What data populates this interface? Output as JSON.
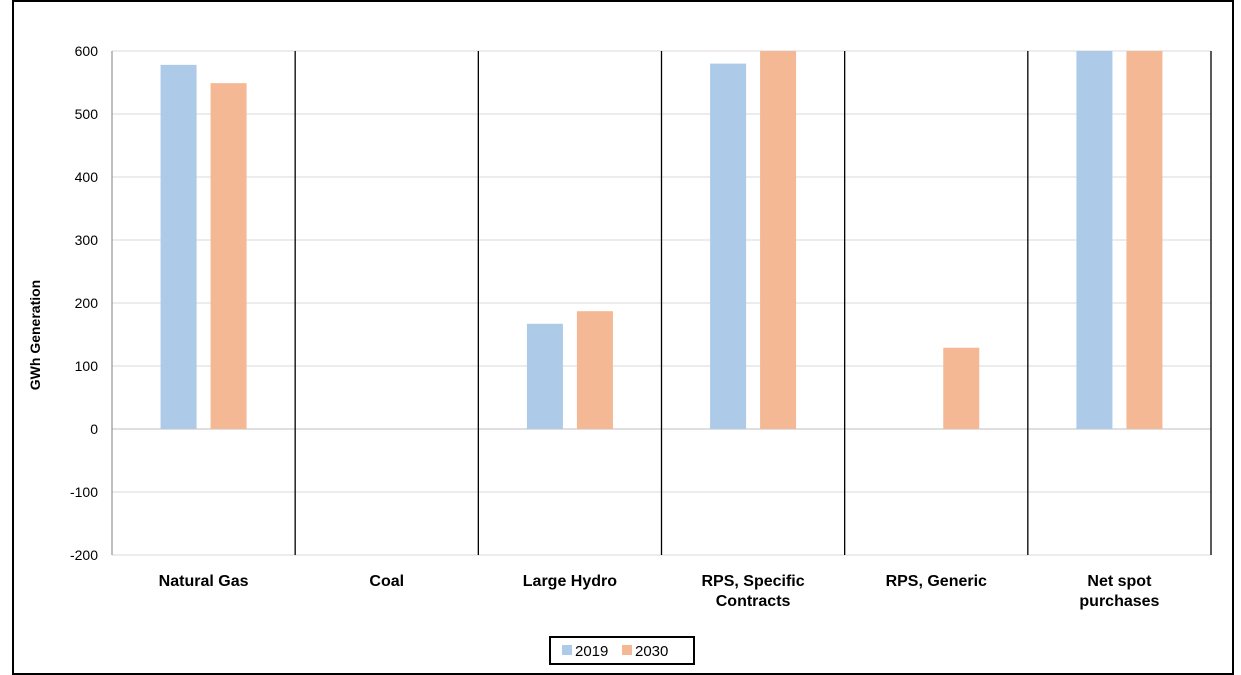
{
  "chart_data": {
    "type": "bar",
    "title": "",
    "xlabel": "",
    "ylabel": "GWh Generation",
    "ylim": [
      -200,
      600
    ],
    "yticks": [
      600,
      500,
      400,
      300,
      200,
      100,
      0,
      -100,
      -200
    ],
    "grid": true,
    "legend_position": "bottom-center",
    "categories": [
      [
        "Natural Gas"
      ],
      [
        "Coal"
      ],
      [
        "Large Hydro"
      ],
      [
        "RPS, Specific",
        "Contracts"
      ],
      [
        "RPS, Generic"
      ],
      [
        "Net spot",
        "purchases"
      ]
    ],
    "series": [
      {
        "name": "2019",
        "color": "#adcbe8",
        "values": [
          578,
          0,
          167,
          580,
          0,
          600
        ]
      },
      {
        "name": "2030",
        "color": "#f4b994",
        "values": [
          549,
          0,
          187,
          600,
          129,
          600
        ]
      }
    ]
  }
}
